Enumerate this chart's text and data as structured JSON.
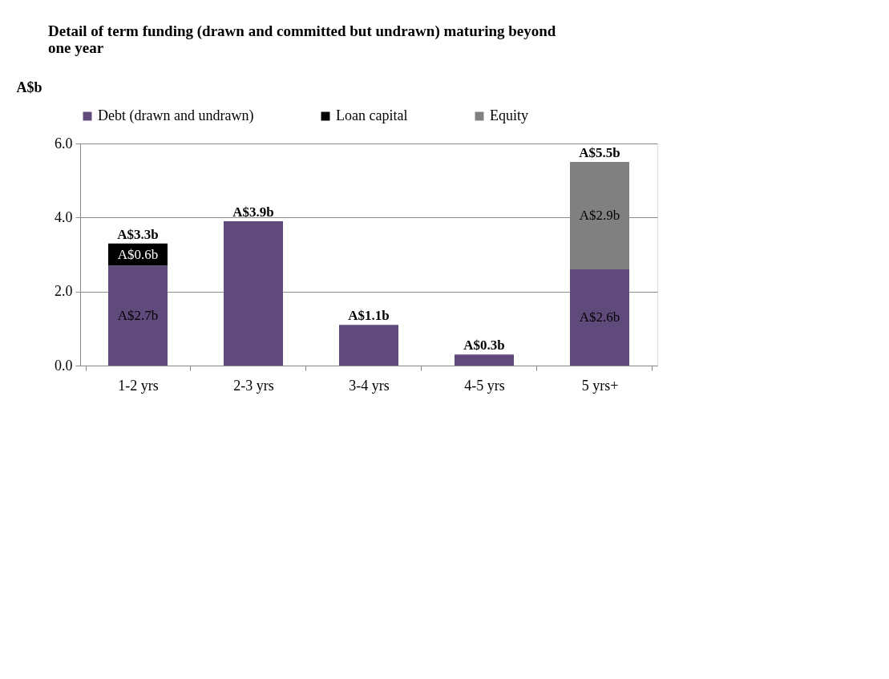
{
  "chart_data": {
    "type": "bar",
    "stacked": true,
    "title": "Detail of term funding (drawn and committed but undrawn) maturing beyond one year",
    "ylabel": "A$b",
    "categories": [
      "1-2 yrs",
      "2-3 yrs",
      "3-4 yrs",
      "4-5 yrs",
      "5 yrs+"
    ],
    "series": [
      {
        "name": "Debt (drawn and undrawn)",
        "color": "#604a7b",
        "values": [
          2.7,
          3.9,
          1.1,
          0.3,
          2.6
        ],
        "value_labels": [
          "A$2.7b",
          null,
          null,
          null,
          "A$2.6b"
        ]
      },
      {
        "name": "Loan capital",
        "color": "#000000",
        "values": [
          0.6,
          null,
          null,
          null,
          null
        ],
        "value_labels": [
          "A$0.6b",
          null,
          null,
          null,
          null
        ]
      },
      {
        "name": "Equity",
        "color": "#808080",
        "values": [
          null,
          null,
          null,
          null,
          2.9
        ],
        "value_labels": [
          null,
          null,
          null,
          null,
          "A$2.9b"
        ]
      }
    ],
    "totals": [
      "A$3.3b",
      "A$3.9b",
      "A$1.1b",
      "A$0.3b",
      "A$5.5b"
    ],
    "ylim": [
      0,
      6
    ],
    "yticks": [
      {
        "value": 0,
        "label": "0.0"
      },
      {
        "value": 2,
        "label": "2.0"
      },
      {
        "value": 4,
        "label": "4.0"
      },
      {
        "value": 6,
        "label": "6.0"
      }
    ],
    "grid": "y",
    "legend": "top"
  }
}
